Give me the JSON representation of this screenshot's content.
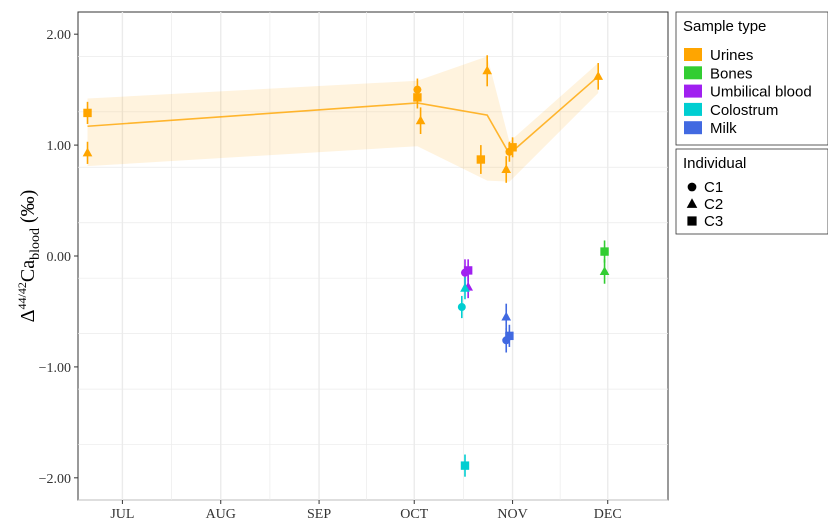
{
  "chart_data": {
    "type": "scatter",
    "ylabel": {
      "prefix": "Δ",
      "sup": "44/42",
      "main": "Ca",
      "sub": "blood",
      "unit": " (‰)"
    },
    "ylim": [
      -2.2,
      2.2
    ],
    "y_ticks": [
      {
        "value": 2.0,
        "label": "2.00"
      },
      {
        "value": 1.0,
        "label": "1.00"
      },
      {
        "value": 0.0,
        "label": "0.00"
      },
      {
        "value": -1.0,
        "label": "−1.00"
      },
      {
        "value": -2.0,
        "label": "−2.00"
      }
    ],
    "x_range": [
      "2023-06-17",
      "2023-12-20"
    ],
    "x_ticks": [
      {
        "date": "2023-07-01",
        "label": "JUL"
      },
      {
        "date": "2023-08-01",
        "label": "AUG"
      },
      {
        "date": "2023-09-01",
        "label": "SEP"
      },
      {
        "date": "2023-10-01",
        "label": "OCT"
      },
      {
        "date": "2023-11-01",
        "label": "NOV"
      },
      {
        "date": "2023-12-01",
        "label": "DEC"
      }
    ],
    "grid": true,
    "legend": {
      "placement": "right",
      "sample_type": {
        "title": "Sample type",
        "items": [
          {
            "label": "Urines",
            "color": "#FFA500"
          },
          {
            "label": "Bones",
            "color": "#32CD32"
          },
          {
            "label": "Umbilical blood",
            "color": "#A020F0"
          },
          {
            "label": "Colostrum",
            "color": "#00CED1"
          },
          {
            "label": "Milk",
            "color": "#4169E1"
          }
        ]
      },
      "individual": {
        "title": "Individual",
        "items": [
          {
            "label": "C1",
            "shape": "circle"
          },
          {
            "label": "C2",
            "shape": "triangle"
          },
          {
            "label": "C3",
            "shape": "square"
          }
        ]
      }
    },
    "trend_line": {
      "color": "#FFA500",
      "points": [
        {
          "x": "2023-06-20",
          "y": 1.17
        },
        {
          "x": "2023-10-02",
          "y": 1.38
        },
        {
          "x": "2023-10-24",
          "y": 1.27
        },
        {
          "x": "2023-10-31",
          "y": 0.92
        },
        {
          "x": "2023-11-28",
          "y": 1.62
        }
      ],
      "band_upper": [
        1.42,
        1.58,
        1.8,
        1.03,
        1.74
      ],
      "band_lower": [
        0.81,
        0.99,
        0.68,
        0.67,
        1.47
      ]
    },
    "series": [
      {
        "type": "Urines",
        "individual": "C3",
        "points": [
          {
            "x": "2023-06-20",
            "y": 1.29,
            "err": 0.1
          },
          {
            "x": "2023-10-02",
            "y": 1.43,
            "err": 0.1
          },
          {
            "x": "2023-10-22",
            "y": 0.87,
            "err": 0.13
          },
          {
            "x": "2023-11-01",
            "y": 0.98,
            "err": 0.09
          }
        ]
      },
      {
        "type": "Urines",
        "individual": "C2",
        "points": [
          {
            "x": "2023-06-20",
            "y": 0.93,
            "err": 0.1
          },
          {
            "x": "2023-10-03",
            "y": 1.22,
            "err": 0.12
          },
          {
            "x": "2023-10-24",
            "y": 1.67,
            "err": 0.14
          },
          {
            "x": "2023-10-30",
            "y": 0.78,
            "err": 0.12
          },
          {
            "x": "2023-11-28",
            "y": 1.62,
            "err": 0.12
          }
        ]
      },
      {
        "type": "Urines",
        "individual": "C1",
        "points": [
          {
            "x": "2023-10-02",
            "y": 1.5,
            "err": 0.1
          },
          {
            "x": "2023-10-31",
            "y": 0.94,
            "err": 0.09
          }
        ]
      },
      {
        "type": "Bones",
        "individual": "C3",
        "points": [
          {
            "x": "2023-11-30",
            "y": 0.04,
            "err": 0.1
          }
        ]
      },
      {
        "type": "Bones",
        "individual": "C2",
        "points": [
          {
            "x": "2023-11-30",
            "y": -0.14,
            "err": 0.11
          }
        ]
      },
      {
        "type": "Umbilical blood",
        "individual": "C1",
        "points": [
          {
            "x": "2023-10-17",
            "y": -0.15,
            "err": 0.12
          }
        ]
      },
      {
        "type": "Umbilical blood",
        "individual": "C3",
        "points": [
          {
            "x": "2023-10-18",
            "y": -0.13,
            "err": 0.1
          }
        ]
      },
      {
        "type": "Umbilical blood",
        "individual": "C2",
        "points": [
          {
            "x": "2023-10-18",
            "y": -0.28,
            "err": 0.1
          }
        ]
      },
      {
        "type": "Colostrum",
        "individual": "C1",
        "points": [
          {
            "x": "2023-10-16",
            "y": -0.46,
            "err": 0.1
          }
        ]
      },
      {
        "type": "Colostrum",
        "individual": "C2",
        "points": [
          {
            "x": "2023-10-17",
            "y": -0.29,
            "err": 0.1
          }
        ]
      },
      {
        "type": "Colostrum",
        "individual": "C3",
        "points": [
          {
            "x": "2023-10-17",
            "y": -1.89,
            "err": 0.1
          }
        ]
      },
      {
        "type": "Milk",
        "individual": "C2",
        "points": [
          {
            "x": "2023-10-30",
            "y": -0.55,
            "err": 0.12
          }
        ]
      },
      {
        "type": "Milk",
        "individual": "C1",
        "points": [
          {
            "x": "2023-10-30",
            "y": -0.76,
            "err": 0.11
          }
        ]
      },
      {
        "type": "Milk",
        "individual": "C3",
        "points": [
          {
            "x": "2023-10-31",
            "y": -0.72,
            "err": 0.1
          }
        ]
      }
    ]
  }
}
